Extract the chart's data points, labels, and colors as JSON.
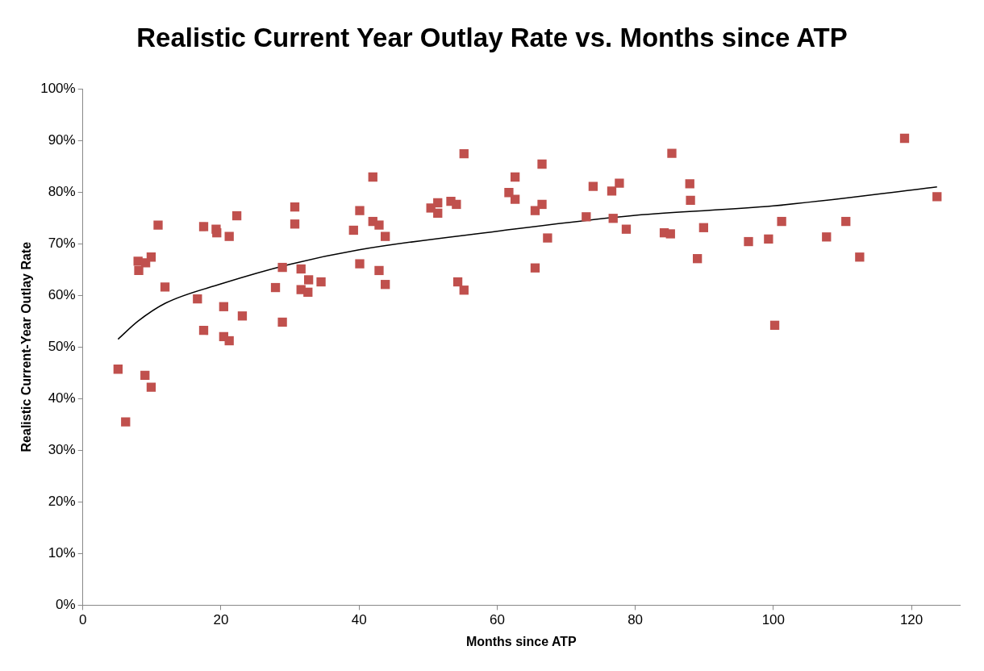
{
  "chart_data": {
    "type": "scatter",
    "title": "Realistic Current Year Outlay Rate vs. Months since ATP",
    "xlabel": "Months since ATP",
    "ylabel": "Realistic Current-Year Outlay Rate",
    "xlim": [
      0,
      127
    ],
    "xticks": [
      0,
      20,
      40,
      60,
      80,
      100,
      120
    ],
    "ylim": [
      0,
      100
    ],
    "yticks": [
      {
        "value": 0,
        "label": "0%"
      },
      {
        "value": 10,
        "label": "10%"
      },
      {
        "value": 20,
        "label": "20%"
      },
      {
        "value": 30,
        "label": "30%"
      },
      {
        "value": 40,
        "label": "40%"
      },
      {
        "value": 50,
        "label": "50%"
      },
      {
        "value": 60,
        "label": "60%"
      },
      {
        "value": 70,
        "label": "70%"
      },
      {
        "value": 80,
        "label": "80%"
      },
      {
        "value": 90,
        "label": "90%"
      },
      {
        "value": 100,
        "label": "100%"
      }
    ],
    "grid": false,
    "legend": false,
    "marker": "square",
    "series": [
      {
        "type": "scatter",
        "color": "#c0504d",
        "x": [
          5.1,
          6.2,
          8.0,
          8.1,
          9.0,
          9.1,
          9.9,
          9.9,
          10.9,
          11.9,
          16.6,
          17.5,
          17.5,
          19.3,
          19.4,
          20.4,
          20.4,
          21.2,
          21.2,
          22.3,
          23.1,
          27.9,
          28.9,
          28.9,
          30.7,
          30.7,
          31.6,
          31.6,
          32.7,
          32.6,
          34.5,
          39.2,
          40.1,
          40.1,
          42.0,
          42.0,
          42.9,
          42.9,
          43.8,
          43.8,
          50.4,
          51.4,
          51.4,
          53.3,
          54.1,
          54.3,
          55.2,
          55.2,
          61.7,
          62.6,
          62.6,
          65.5,
          65.5,
          66.5,
          66.5,
          67.3,
          72.9,
          73.9,
          76.6,
          76.8,
          77.7,
          78.7,
          84.2,
          85.1,
          85.3,
          87.9,
          88.0,
          89.0,
          89.9,
          96.4,
          99.3,
          100.2,
          101.2,
          107.7,
          110.5,
          112.5,
          119.0,
          123.7
        ],
        "values": [
          45.7,
          35.5,
          66.6,
          64.8,
          44.5,
          66.3,
          67.4,
          42.2,
          73.6,
          61.6,
          59.3,
          53.2,
          73.3,
          72.8,
          72.1,
          57.8,
          52.0,
          71.4,
          51.2,
          75.4,
          56.0,
          61.5,
          65.4,
          54.8,
          77.1,
          73.8,
          65.1,
          61.1,
          63.0,
          60.6,
          62.6,
          72.6,
          76.4,
          66.1,
          82.9,
          74.3,
          73.6,
          64.8,
          71.4,
          62.1,
          76.9,
          77.9,
          75.9,
          78.2,
          77.6,
          62.6,
          87.4,
          61.0,
          79.9,
          82.9,
          78.6,
          76.4,
          65.3,
          85.4,
          77.6,
          71.1,
          75.2,
          81.1,
          80.2,
          74.9,
          81.7,
          72.8,
          72.1,
          71.9,
          87.5,
          81.6,
          78.4,
          67.1,
          73.1,
          70.4,
          70.9,
          54.2,
          74.3,
          71.3,
          74.3,
          67.4,
          90.4,
          79.1
        ]
      },
      {
        "type": "line",
        "color": "#000000",
        "marker": "none",
        "line_style": "solid",
        "x": [
          5.1,
          8,
          12,
          20,
          30,
          40,
          60,
          80,
          100,
          123.7
        ],
        "values": [
          51.5,
          55,
          58.5,
          62.2,
          66,
          68.8,
          72.4,
          75.5,
          77.3,
          81
        ]
      }
    ]
  }
}
